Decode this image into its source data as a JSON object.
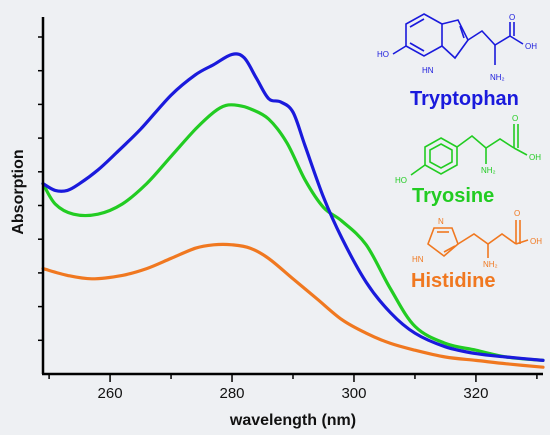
{
  "chart_data": {
    "type": "line",
    "title": "",
    "xlabel": "wavelength (nm)",
    "ylabel": "Absorption",
    "xlim": [
      249,
      331
    ],
    "ylim": [
      0,
      1.05
    ],
    "xticks": [
      260,
      280,
      300,
      320
    ],
    "grid": false,
    "series": [
      {
        "name": "Tryptophan",
        "color": "#1a1adc",
        "x": [
          249,
          251,
          253,
          255,
          258,
          261,
          265,
          270,
          274,
          277,
          280,
          282,
          284,
          286,
          288,
          290,
          292,
          295,
          298,
          302,
          306,
          310,
          315,
          320,
          325,
          331
        ],
        "y": [
          0.56,
          0.54,
          0.54,
          0.56,
          0.6,
          0.65,
          0.72,
          0.82,
          0.88,
          0.91,
          0.94,
          0.93,
          0.87,
          0.81,
          0.8,
          0.77,
          0.67,
          0.52,
          0.4,
          0.27,
          0.18,
          0.12,
          0.08,
          0.06,
          0.05,
          0.04
        ]
      },
      {
        "name": "Tryosine",
        "color": "#22cc22",
        "x": [
          249,
          251,
          254,
          258,
          262,
          266,
          270,
          274,
          277,
          279,
          281,
          283,
          286,
          289,
          292,
          295,
          298,
          302,
          306,
          310,
          315,
          320,
          325,
          331
        ],
        "y": [
          0.56,
          0.5,
          0.47,
          0.47,
          0.5,
          0.56,
          0.64,
          0.72,
          0.77,
          0.79,
          0.79,
          0.78,
          0.75,
          0.68,
          0.57,
          0.49,
          0.45,
          0.38,
          0.25,
          0.14,
          0.09,
          0.07,
          0.05,
          0.04
        ]
      },
      {
        "name": "Histidine",
        "color": "#f07820",
        "x": [
          249,
          253,
          257,
          262,
          266,
          270,
          274,
          277,
          280,
          283,
          286,
          290,
          294,
          298,
          302,
          306,
          310,
          315,
          320,
          325,
          331
        ],
        "y": [
          0.31,
          0.29,
          0.28,
          0.29,
          0.31,
          0.34,
          0.37,
          0.38,
          0.38,
          0.37,
          0.34,
          0.28,
          0.22,
          0.16,
          0.12,
          0.09,
          0.07,
          0.05,
          0.04,
          0.03,
          0.02
        ]
      }
    ]
  },
  "molecules": [
    {
      "name": "Tryptophan",
      "color": "#1a1adc",
      "atoms": [
        "HO",
        "HN",
        "NH₂",
        "O",
        "OH"
      ]
    },
    {
      "name": "Tryosine",
      "color": "#22cc22",
      "atoms": [
        "HO",
        "NH₂",
        "O",
        "OH"
      ]
    },
    {
      "name": "Histidine",
      "color": "#f07820",
      "atoms": [
        "N",
        "HN",
        "NH₂",
        "O",
        "OH"
      ]
    }
  ]
}
